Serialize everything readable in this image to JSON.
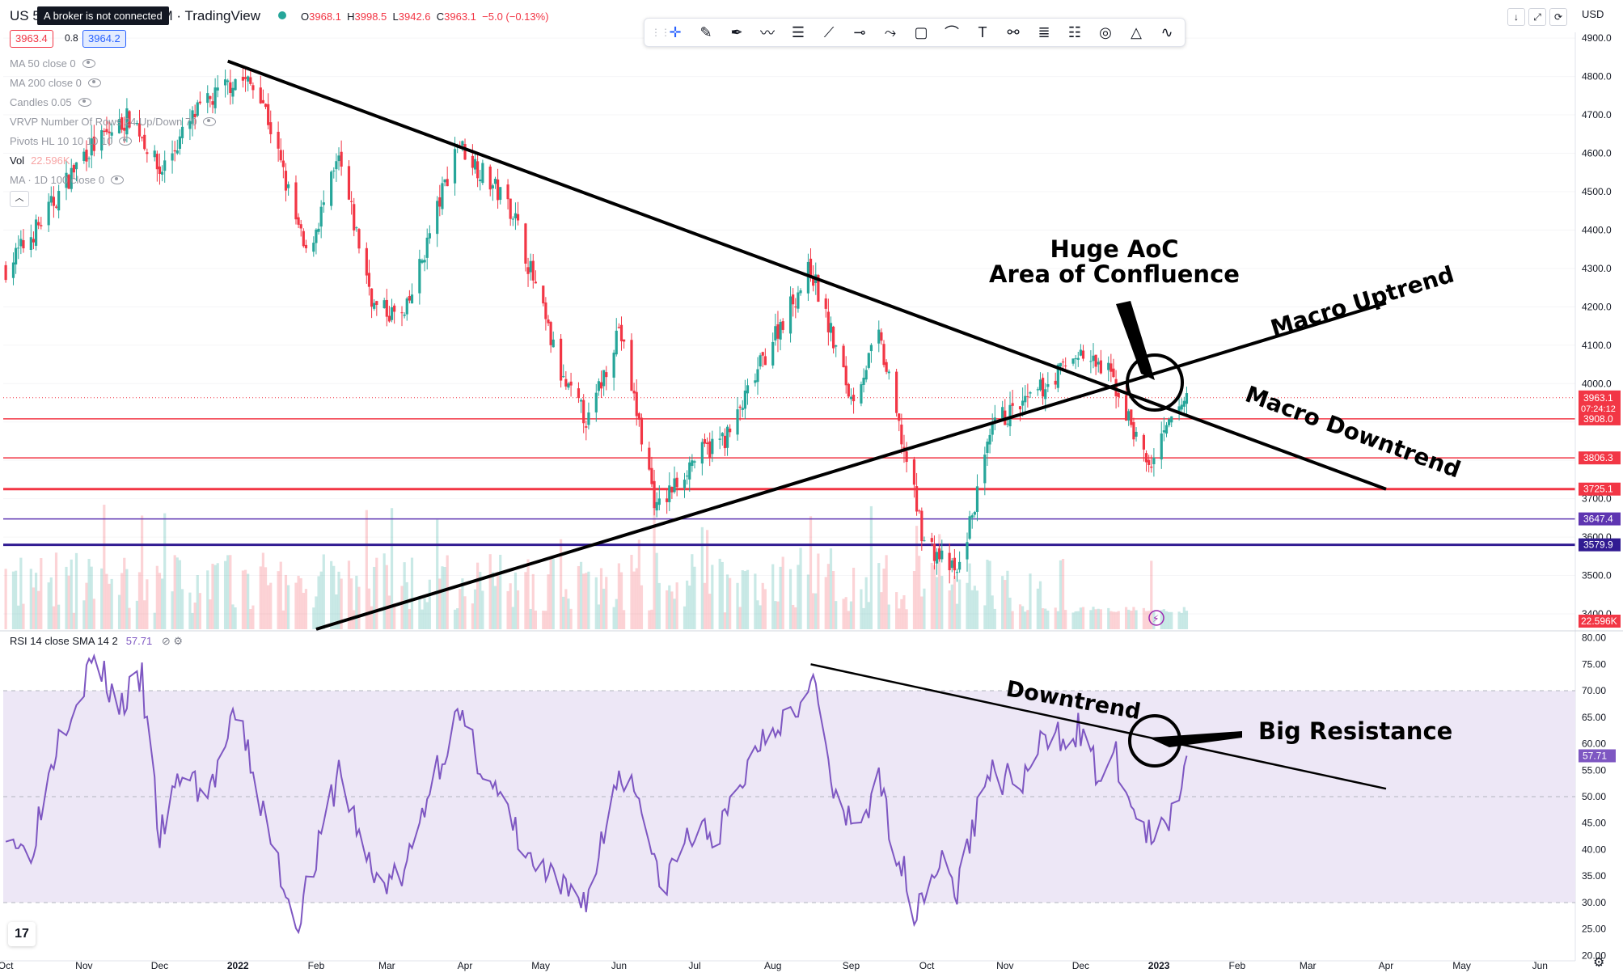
{
  "header": {
    "symbol": "US 50",
    "symbol_suffix": "DM · TradingView",
    "tooltip": "A broker is not connected",
    "ohlc": {
      "o": "3968.1",
      "h": "3998.5",
      "l": "3942.6",
      "c": "3963.1",
      "chg": "−5.0 (−0.13%)"
    },
    "bid": "3963.4",
    "spread": "0.8",
    "ask": "3964.2",
    "currency": "USD"
  },
  "legend": [
    {
      "label": "MA 50 close 0",
      "icon": "eye-hidden-icon"
    },
    {
      "label": "MA 200 close 0",
      "icon": "eye-hidden-icon"
    },
    {
      "label": "Candles 0.05",
      "icon": "eye-hidden-icon"
    },
    {
      "label": "VRVP Number Of Rows 24 Up/Down 70",
      "icon": "eye-hidden-icon"
    },
    {
      "label": "Pivots HL 10 10 10 10",
      "icon": "eye-hidden-icon"
    },
    {
      "label": "Vol",
      "value": "22.596K"
    },
    {
      "label": "MA · 1D 100 close 0",
      "icon": "eye-hidden-icon"
    }
  ],
  "rsi_legend": {
    "label": "RSI 14 close SMA 14 2",
    "value": "57.71"
  },
  "toolbar_icons": [
    "cursor-icon",
    "brush-icon",
    "pen-icon",
    "path-icon",
    "parallel-channel-icon",
    "trend-line-icon",
    "horizontal-ray-icon",
    "polyline-icon",
    "rectangle-icon",
    "curve-icon",
    "text-icon",
    "anchor-line-icon",
    "fib-retracement-icon",
    "gann-fan-icon",
    "ellipse-icon",
    "triangle-icon",
    "magnet-icon"
  ],
  "top_right_buttons": [
    "download-icon",
    "fullscreen-icon",
    "refresh-icon"
  ],
  "colors": {
    "up": "#26a69a",
    "down": "#f23645",
    "rsi": "#7e57c2",
    "rsi_band": "#ede7f6",
    "level_red": "#f23645",
    "level_purple": "#5e35b1",
    "level_navy": "#311b92"
  },
  "chart_data": [
    {
      "type": "candlestick",
      "title": "US 50 · 1D",
      "x": [
        "Oct",
        "Nov",
        "Dec",
        "2022",
        "Feb",
        "Mar",
        "Apr",
        "May",
        "Jun",
        "Jul",
        "Aug",
        "Sep",
        "Oct",
        "Nov",
        "Dec",
        "2023",
        "Feb",
        "Mar",
        "Apr",
        "May",
        "Jun"
      ],
      "y_ticks": [
        3400,
        3500,
        3600,
        3700,
        3800,
        3900,
        4000,
        4100,
        4200,
        4300,
        4400,
        4500,
        4600,
        4700,
        4800,
        4900
      ],
      "y_tick_labels": [
        "3400.0",
        "3500.0",
        "3600.0",
        "3700.0",
        "3800.0",
        "3900.0",
        "4000.0",
        "4100.0",
        "4200.0",
        "4300.0",
        "4400.0",
        "4500.0",
        "4600.0",
        "4700.0",
        "4800.0",
        "4900.0"
      ],
      "ylim": [
        3360,
        4915
      ],
      "price_path": [
        [
          "2021-10-01",
          4300
        ],
        [
          "2021-10-15",
          4420
        ],
        [
          "2021-11-01",
          4600
        ],
        [
          "2021-11-20",
          4700
        ],
        [
          "2021-12-01",
          4550
        ],
        [
          "2021-12-15",
          4700
        ],
        [
          "2022-01-01",
          4800
        ],
        [
          "2022-01-10",
          4760
        ],
        [
          "2022-01-28",
          4330
        ],
        [
          "2022-02-10",
          4580
        ],
        [
          "2022-02-24",
          4200
        ],
        [
          "2022-03-08",
          4170
        ],
        [
          "2022-03-29",
          4630
        ],
        [
          "2022-04-20",
          4450
        ],
        [
          "2022-05-10",
          4000
        ],
        [
          "2022-05-20",
          3900
        ],
        [
          "2022-06-01",
          4150
        ],
        [
          "2022-06-16",
          3670
        ],
        [
          "2022-06-30",
          3800
        ],
        [
          "2022-07-15",
          3870
        ],
        [
          "2022-08-01",
          4120
        ],
        [
          "2022-08-16",
          4300
        ],
        [
          "2022-09-01",
          3960
        ],
        [
          "2022-09-12",
          4120
        ],
        [
          "2022-09-30",
          3590
        ],
        [
          "2022-10-13",
          3500
        ],
        [
          "2022-10-28",
          3900
        ],
        [
          "2022-11-10",
          3950
        ],
        [
          "2022-11-30",
          4080
        ],
        [
          "2022-12-13",
          4020
        ],
        [
          "2022-12-28",
          3780
        ],
        [
          "2023-01-06",
          3900
        ],
        [
          "2023-01-12",
          3968
        ]
      ],
      "last_price": {
        "value": "3963.1",
        "countdown": "07:24:12"
      },
      "horizontal_levels": [
        {
          "value": "3908.0",
          "color": "#f23645"
        },
        {
          "value": "3806.3",
          "color": "#f23645"
        },
        {
          "value": "3725.1",
          "color": "#f23645"
        },
        {
          "value": "3647.4",
          "color": "#5e35b1"
        },
        {
          "value": "3579.9",
          "color": "#311b92"
        }
      ],
      "volume_label": "22.596K",
      "annotations": [
        {
          "text": "Huge AoC",
          "kind": "title"
        },
        {
          "text": "Area of Confluence",
          "kind": "title"
        },
        {
          "text": "Macro Uptrend",
          "kind": "trendline-label"
        },
        {
          "text": "Macro Downtrend",
          "kind": "trendline-label"
        }
      ],
      "trendlines": [
        {
          "name": "macro-downtrend",
          "from": [
            "2021-12-28",
            4840
          ],
          "to": [
            "2023-04-01",
            3725
          ]
        },
        {
          "name": "macro-uptrend",
          "from": [
            "2022-02-01",
            3360
          ],
          "to": [
            "2023-04-01",
            4210
          ]
        }
      ]
    },
    {
      "type": "line",
      "title": "RSI 14 close SMA 14 2",
      "x": [
        "Oct",
        "Nov",
        "Dec",
        "2022",
        "Feb",
        "Mar",
        "Apr",
        "May",
        "Jun",
        "Jul",
        "Aug",
        "Sep",
        "Oct",
        "Nov",
        "Dec",
        "2023",
        "Feb",
        "Mar",
        "Apr",
        "May",
        "Jun"
      ],
      "y_ticks": [
        20,
        25,
        30,
        35,
        40,
        45,
        50,
        55,
        60,
        65,
        70,
        75,
        80
      ],
      "y_tick_labels": [
        "20.00",
        "25.00",
        "30.00",
        "35.00",
        "40.00",
        "45.00",
        "50.00",
        "55.00",
        "60.00",
        "65.00",
        "70.00",
        "75.00",
        "80.00"
      ],
      "ylim": [
        19,
        81
      ],
      "band": [
        30,
        70
      ],
      "midline": 50,
      "last_value": "57.71",
      "rsi_path": [
        [
          "2021-10-01",
          45
        ],
        [
          "2021-10-10",
          38
        ],
        [
          "2021-10-22",
          62
        ],
        [
          "2021-11-05",
          76
        ],
        [
          "2021-11-15",
          67
        ],
        [
          "2021-11-24",
          72
        ],
        [
          "2021-12-01",
          42
        ],
        [
          "2021-12-10",
          55
        ],
        [
          "2021-12-20",
          50
        ],
        [
          "2022-01-01",
          66
        ],
        [
          "2022-01-12",
          45
        ],
        [
          "2022-01-24",
          26
        ],
        [
          "2022-02-02",
          40
        ],
        [
          "2022-02-10",
          55
        ],
        [
          "2022-02-24",
          34
        ],
        [
          "2022-03-08",
          35
        ],
        [
          "2022-03-18",
          52
        ],
        [
          "2022-03-29",
          65
        ],
        [
          "2022-04-12",
          52
        ],
        [
          "2022-04-26",
          38
        ],
        [
          "2022-05-10",
          32
        ],
        [
          "2022-05-20",
          31
        ],
        [
          "2022-06-01",
          55
        ],
        [
          "2022-06-10",
          50
        ],
        [
          "2022-06-17",
          32
        ],
        [
          "2022-06-28",
          42
        ],
        [
          "2022-07-12",
          44
        ],
        [
          "2022-07-28",
          62
        ],
        [
          "2022-08-12",
          68
        ],
        [
          "2022-08-16",
          75
        ],
        [
          "2022-08-26",
          48
        ],
        [
          "2022-09-02",
          44
        ],
        [
          "2022-09-12",
          52
        ],
        [
          "2022-09-26",
          29
        ],
        [
          "2022-10-06",
          38
        ],
        [
          "2022-10-13",
          32
        ],
        [
          "2022-10-25",
          55
        ],
        [
          "2022-11-07",
          52
        ],
        [
          "2022-11-16",
          60
        ],
        [
          "2022-11-30",
          63
        ],
        [
          "2022-12-08",
          54
        ],
        [
          "2022-12-15",
          57
        ],
        [
          "2022-12-22",
          47
        ],
        [
          "2022-12-30",
          41
        ],
        [
          "2023-01-05",
          45
        ],
        [
          "2023-01-09",
          52
        ],
        [
          "2023-01-12",
          57.71
        ]
      ],
      "annotations": [
        {
          "text": "Downtrend",
          "kind": "trendline-label"
        },
        {
          "text": "Big Resistance",
          "kind": "callout"
        }
      ],
      "trendlines": [
        {
          "name": "rsi-downtrend",
          "from": [
            "2022-08-16",
            75
          ],
          "to": [
            "2023-04-01",
            51.5
          ]
        }
      ]
    }
  ]
}
